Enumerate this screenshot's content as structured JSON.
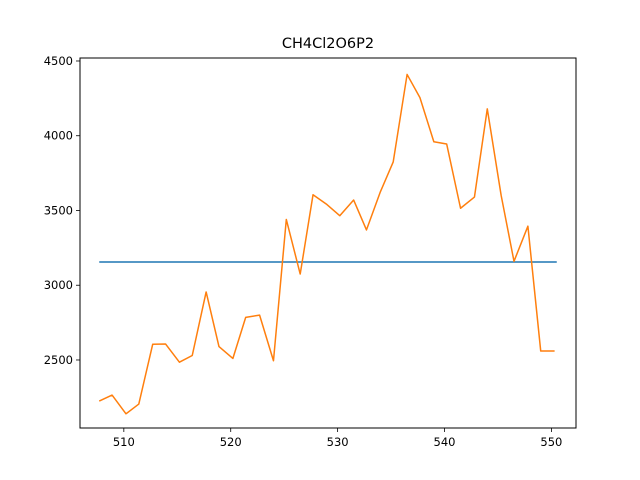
{
  "chart_data": {
    "type": "line",
    "title": "CH4Cl2O6P2",
    "xlabel": "",
    "ylabel": "",
    "xlim": [
      505.9,
      552.3
    ],
    "ylim": [
      2045,
      4520
    ],
    "xticks": [
      510,
      520,
      530,
      540,
      550
    ],
    "yticks": [
      2500,
      3000,
      3500,
      4000,
      4500
    ],
    "grid": false,
    "series": [
      {
        "color": "#1f77b4",
        "x": [
          507.7,
          550.5
        ],
        "y": [
          3155,
          3155
        ]
      },
      {
        "color": "#ff7f0e",
        "x": [
          507.7,
          508.9,
          510.2,
          511.4,
          512.7,
          513.9,
          515.2,
          516.4,
          517.7,
          518.9,
          520.2,
          521.4,
          522.7,
          524.0,
          525.2,
          526.5,
          527.7,
          529.0,
          530.2,
          531.5,
          532.7,
          534.0,
          535.2,
          536.5,
          537.7,
          539.0,
          540.2,
          541.5,
          542.8,
          544.0,
          545.3,
          546.5,
          547.8,
          549.0,
          550.3
        ],
        "y": [
          2225,
          2265,
          2140,
          2205,
          2605,
          2607,
          2485,
          2530,
          2955,
          2590,
          2510,
          2785,
          2800,
          2495,
          3440,
          3075,
          3605,
          3540,
          3465,
          3570,
          3370,
          3625,
          3825,
          4410,
          4255,
          3960,
          3945,
          3515,
          3590,
          4180,
          3600,
          3160,
          3395,
          2560,
          2560
        ]
      }
    ]
  }
}
